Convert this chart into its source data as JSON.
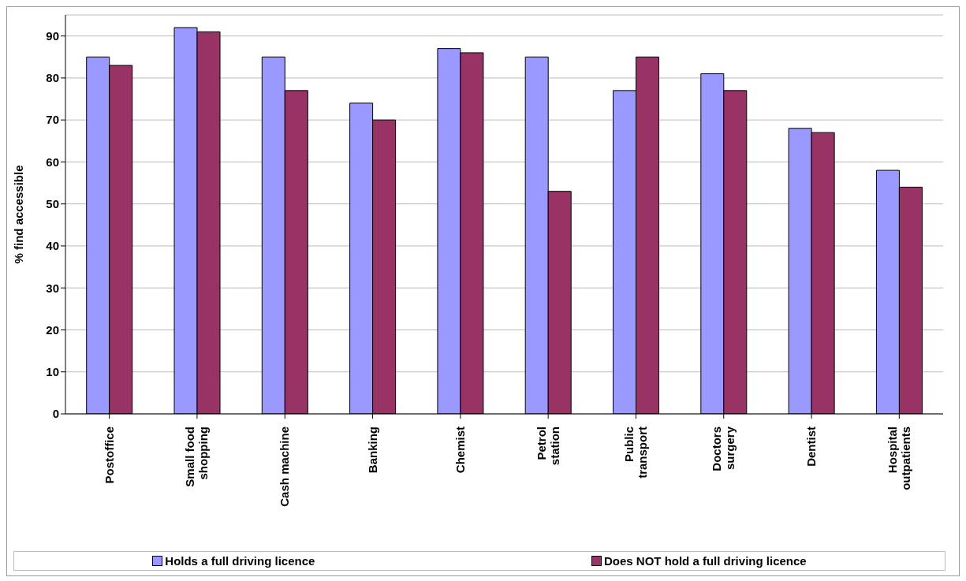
{
  "chart_data": {
    "type": "bar",
    "ylabel": "% find accessible",
    "categories": [
      "Postoffice",
      "Small food shopping",
      "Cash machine",
      "Banking",
      "Chemist",
      "Petrol station",
      "Public transport",
      "Doctors surgery",
      "Dentist",
      "Hospital outpatients"
    ],
    "series": [
      {
        "name": "Holds a full driving licence",
        "color": "#9999ff",
        "values": [
          85,
          92,
          85,
          74,
          87,
          85,
          77,
          81,
          68,
          58
        ]
      },
      {
        "name": "Does NOT hold a full driving licence",
        "color": "#993366",
        "values": [
          83,
          91,
          77,
          70,
          86,
          53,
          85,
          77,
          67,
          54
        ]
      }
    ],
    "ylim": [
      0,
      95
    ],
    "yticks": [
      0,
      10,
      20,
      30,
      40,
      50,
      60,
      70,
      80,
      90
    ],
    "grid": "y",
    "legend": "bottom"
  }
}
